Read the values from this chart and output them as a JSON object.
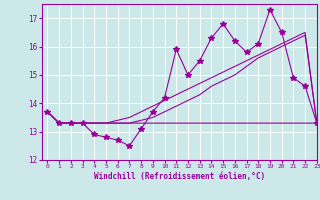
{
  "x": [
    0,
    1,
    2,
    3,
    4,
    5,
    6,
    7,
    8,
    9,
    10,
    11,
    12,
    13,
    14,
    15,
    16,
    17,
    18,
    19,
    20,
    21,
    22,
    23
  ],
  "line_jagged": [
    13.7,
    13.3,
    13.3,
    13.3,
    12.9,
    12.8,
    12.7,
    12.5,
    13.1,
    13.7,
    14.2,
    15.9,
    15.0,
    15.5,
    16.3,
    16.8,
    16.2,
    15.8,
    16.1,
    17.3,
    16.5,
    14.9,
    14.6,
    13.3
  ],
  "line_flat": [
    13.7,
    13.3,
    13.3,
    13.3,
    13.3,
    13.3,
    13.3,
    13.3,
    13.3,
    13.3,
    13.3,
    13.3,
    13.3,
    13.3,
    13.3,
    13.3,
    13.3,
    13.3,
    13.3,
    13.3,
    13.3,
    13.3,
    13.3,
    13.3
  ],
  "line_rise1": [
    13.7,
    13.3,
    13.3,
    13.3,
    13.3,
    13.3,
    13.3,
    13.3,
    13.4,
    13.5,
    13.7,
    13.9,
    14.1,
    14.3,
    14.6,
    14.8,
    15.0,
    15.3,
    15.6,
    15.8,
    16.0,
    16.2,
    16.4,
    13.3
  ],
  "line_rise2": [
    13.7,
    13.3,
    13.3,
    13.3,
    13.3,
    13.3,
    13.4,
    13.5,
    13.7,
    13.9,
    14.1,
    14.3,
    14.5,
    14.7,
    14.9,
    15.1,
    15.3,
    15.5,
    15.7,
    15.9,
    16.1,
    16.3,
    16.5,
    13.3
  ],
  "ylim": [
    12,
    17.5
  ],
  "xlim": [
    -0.5,
    23
  ],
  "yticks": [
    12,
    13,
    14,
    15,
    16,
    17
  ],
  "xticks": [
    0,
    1,
    2,
    3,
    4,
    5,
    6,
    7,
    8,
    9,
    10,
    11,
    12,
    13,
    14,
    15,
    16,
    17,
    18,
    19,
    20,
    21,
    22,
    23
  ],
  "xlabel": "Windchill (Refroidissement éolien,°C)",
  "color": "#990099",
  "bg_color": "#cce8e8",
  "grid_color": "#ffffff",
  "line_width": 0.8,
  "marker": "*",
  "marker_size": 4
}
